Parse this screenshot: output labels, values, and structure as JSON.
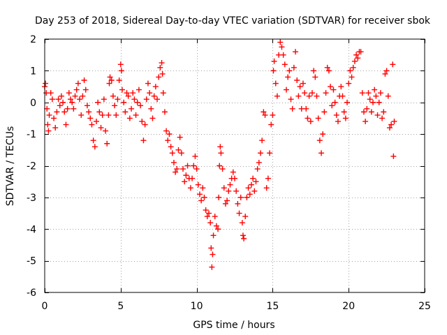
{
  "chart_data": {
    "type": "scatter",
    "title": "Day 253 of 2018, Sidereal Day-to-day VTEC variation (SDTVAR) for receiver sbok",
    "xlabel": "GPS time / hours",
    "ylabel": "SDTVAR / TECUs",
    "xlim": [
      0,
      25
    ],
    "ylim": [
      -6,
      2
    ],
    "xticks": [
      0,
      5,
      10,
      15,
      20,
      25
    ],
    "xtick_labels": [
      "0",
      "5",
      "10",
      "15",
      "20",
      "25"
    ],
    "yticks": [
      -6,
      -5,
      -4,
      -3,
      -2,
      -1,
      0,
      1,
      2
    ],
    "ytick_labels": [
      "-6",
      "-5",
      "-4",
      "-3",
      "-2",
      "-1",
      "0",
      "1",
      "2"
    ],
    "grid": true,
    "marker": "+",
    "color": "#ff0000",
    "series": [
      {
        "name": "SDTVAR",
        "points": [
          [
            0.0,
            0.5
          ],
          [
            0.05,
            0.6
          ],
          [
            0.1,
            0.3
          ],
          [
            0.15,
            -0.2
          ],
          [
            0.2,
            -0.7
          ],
          [
            0.25,
            -0.9
          ],
          [
            0.3,
            -0.4
          ],
          [
            0.4,
            0.3
          ],
          [
            0.5,
            0.1
          ],
          [
            0.6,
            -0.5
          ],
          [
            0.7,
            -0.8
          ],
          [
            0.8,
            -0.3
          ],
          [
            0.9,
            0.1
          ],
          [
            1.0,
            -0.1
          ],
          [
            1.1,
            0.2
          ],
          [
            1.2,
            0.0
          ],
          [
            1.3,
            -0.3
          ],
          [
            1.4,
            -0.7
          ],
          [
            1.5,
            -0.2
          ],
          [
            1.6,
            0.3
          ],
          [
            1.7,
            0.1
          ],
          [
            1.8,
            0.0
          ],
          [
            1.9,
            -0.2
          ],
          [
            2.0,
            0.2
          ],
          [
            2.1,
            0.4
          ],
          [
            2.2,
            0.6
          ],
          [
            2.3,
            0.1
          ],
          [
            2.4,
            -0.4
          ],
          [
            2.5,
            0.2
          ],
          [
            2.6,
            0.7
          ],
          [
            2.7,
            0.4
          ],
          [
            2.8,
            -0.1
          ],
          [
            2.9,
            -0.3
          ],
          [
            3.0,
            -0.5
          ],
          [
            3.1,
            -0.7
          ],
          [
            3.2,
            -1.2
          ],
          [
            3.3,
            -1.4
          ],
          [
            3.4,
            -0.6
          ],
          [
            3.5,
            0.0
          ],
          [
            3.6,
            -0.3
          ],
          [
            3.7,
            -0.8
          ],
          [
            3.8,
            -0.4
          ],
          [
            3.9,
            0.1
          ],
          [
            4.0,
            -0.9
          ],
          [
            4.1,
            -1.3
          ],
          [
            4.2,
            -0.4
          ],
          [
            4.25,
            0.6
          ],
          [
            4.3,
            0.8
          ],
          [
            4.4,
            0.7
          ],
          [
            4.5,
            0.2
          ],
          [
            4.6,
            -0.1
          ],
          [
            4.7,
            -0.4
          ],
          [
            4.8,
            0.1
          ],
          [
            4.9,
            0.7
          ],
          [
            5.0,
            1.2
          ],
          [
            5.05,
            1.0
          ],
          [
            5.1,
            0.4
          ],
          [
            5.2,
            0.0
          ],
          [
            5.3,
            -0.3
          ],
          [
            5.4,
            0.3
          ],
          [
            5.5,
            0.2
          ],
          [
            5.6,
            -0.5
          ],
          [
            5.7,
            -0.2
          ],
          [
            5.8,
            0.3
          ],
          [
            5.9,
            0.1
          ],
          [
            6.0,
            -0.4
          ],
          [
            6.1,
            0.0
          ],
          [
            6.2,
            0.4
          ],
          [
            6.3,
            -0.1
          ],
          [
            6.4,
            -0.6
          ],
          [
            6.5,
            -1.2
          ],
          [
            6.6,
            -0.7
          ],
          [
            6.7,
            0.1
          ],
          [
            6.8,
            0.6
          ],
          [
            6.9,
            0.3
          ],
          [
            7.0,
            -0.2
          ],
          [
            7.1,
            -0.5
          ],
          [
            7.2,
            0.2
          ],
          [
            7.3,
            0.5
          ],
          [
            7.4,
            0.1
          ],
          [
            7.5,
            0.8
          ],
          [
            7.6,
            1.1
          ],
          [
            7.7,
            1.25
          ],
          [
            7.75,
            0.9
          ],
          [
            7.8,
            0.3
          ],
          [
            7.9,
            -0.3
          ],
          [
            8.0,
            -0.9
          ],
          [
            8.1,
            -1.2
          ],
          [
            8.2,
            -1.0
          ],
          [
            8.3,
            -1.4
          ],
          [
            8.4,
            -1.6
          ],
          [
            8.5,
            -1.9
          ],
          [
            8.6,
            -2.2
          ],
          [
            8.7,
            -2.1
          ],
          [
            8.8,
            -1.5
          ],
          [
            8.9,
            -1.1
          ],
          [
            9.0,
            -1.6
          ],
          [
            9.1,
            -2.1
          ],
          [
            9.2,
            -2.5
          ],
          [
            9.3,
            -2.3
          ],
          [
            9.4,
            -2.0
          ],
          [
            9.5,
            -2.4
          ],
          [
            9.6,
            -2.7
          ],
          [
            9.7,
            -2.4
          ],
          [
            9.8,
            -2.0
          ],
          [
            9.9,
            -1.7
          ],
          [
            10.0,
            -2.1
          ],
          [
            10.1,
            -2.6
          ],
          [
            10.2,
            -2.9
          ],
          [
            10.3,
            -3.1
          ],
          [
            10.4,
            -2.7
          ],
          [
            10.5,
            -3.0
          ],
          [
            10.6,
            -3.4
          ],
          [
            10.7,
            -3.6
          ],
          [
            10.8,
            -3.5
          ],
          [
            10.9,
            -3.8
          ],
          [
            10.95,
            -4.6
          ],
          [
            11.0,
            -5.2
          ],
          [
            11.05,
            -4.8
          ],
          [
            11.1,
            -4.2
          ],
          [
            11.2,
            -3.6
          ],
          [
            11.3,
            -3.9
          ],
          [
            11.4,
            -4.0
          ],
          [
            11.45,
            -3.0
          ],
          [
            11.5,
            -2.0
          ],
          [
            11.55,
            -1.4
          ],
          [
            11.6,
            -1.6
          ],
          [
            11.7,
            -2.1
          ],
          [
            11.8,
            -2.7
          ],
          [
            11.9,
            -3.2
          ],
          [
            12.0,
            -3.1
          ],
          [
            12.1,
            -2.8
          ],
          [
            12.2,
            -2.6
          ],
          [
            12.3,
            -2.4
          ],
          [
            12.4,
            -2.2
          ],
          [
            12.5,
            -2.4
          ],
          [
            12.6,
            -2.8
          ],
          [
            12.7,
            -3.2
          ],
          [
            12.8,
            -3.5
          ],
          [
            12.9,
            -3.0
          ],
          [
            13.0,
            -3.8
          ],
          [
            13.05,
            -4.2
          ],
          [
            13.1,
            -4.3
          ],
          [
            13.2,
            -3.6
          ],
          [
            13.3,
            -3.0
          ],
          [
            13.4,
            -2.7
          ],
          [
            13.5,
            -2.9
          ],
          [
            13.6,
            -2.6
          ],
          [
            13.7,
            -2.4
          ],
          [
            13.8,
            -2.8
          ],
          [
            13.9,
            -2.5
          ],
          [
            14.0,
            -2.1
          ],
          [
            14.1,
            -1.9
          ],
          [
            14.2,
            -1.6
          ],
          [
            14.3,
            -1.2
          ],
          [
            14.4,
            -0.3
          ],
          [
            14.5,
            -0.4
          ],
          [
            14.6,
            -2.7
          ],
          [
            14.7,
            -2.4
          ],
          [
            14.8,
            -1.6
          ],
          [
            14.9,
            -0.7
          ],
          [
            15.0,
            -0.4
          ],
          [
            15.05,
            1.0
          ],
          [
            15.1,
            1.3
          ],
          [
            15.2,
            0.6
          ],
          [
            15.3,
            0.2
          ],
          [
            15.4,
            1.5
          ],
          [
            15.5,
            1.9
          ],
          [
            15.6,
            1.75
          ],
          [
            15.7,
            1.5
          ],
          [
            15.8,
            1.2
          ],
          [
            15.9,
            0.4
          ],
          [
            16.0,
            0.8
          ],
          [
            16.1,
            1.0
          ],
          [
            16.2,
            0.1
          ],
          [
            16.3,
            -0.2
          ],
          [
            16.4,
            1.1
          ],
          [
            16.5,
            1.6
          ],
          [
            16.6,
            0.7
          ],
          [
            16.7,
            0.2
          ],
          [
            16.8,
            0.5
          ],
          [
            16.9,
            -0.2
          ],
          [
            17.0,
            0.6
          ],
          [
            17.1,
            0.3
          ],
          [
            17.2,
            -0.2
          ],
          [
            17.3,
            -0.5
          ],
          [
            17.4,
            0.2
          ],
          [
            17.5,
            -0.6
          ],
          [
            17.6,
            0.3
          ],
          [
            17.7,
            1.0
          ],
          [
            17.8,
            0.8
          ],
          [
            17.9,
            0.2
          ],
          [
            18.0,
            -0.5
          ],
          [
            18.1,
            -1.2
          ],
          [
            18.2,
            -1.6
          ],
          [
            18.3,
            -1.0
          ],
          [
            18.4,
            -0.3
          ],
          [
            18.5,
            0.3
          ],
          [
            18.6,
            1.1
          ],
          [
            18.7,
            1.0
          ],
          [
            18.8,
            0.5
          ],
          [
            18.9,
            -0.1
          ],
          [
            19.0,
            0.4
          ],
          [
            19.1,
            0.0
          ],
          [
            19.2,
            -0.4
          ],
          [
            19.3,
            -0.6
          ],
          [
            19.4,
            0.2
          ],
          [
            19.5,
            0.5
          ],
          [
            19.6,
            0.2
          ],
          [
            19.7,
            -0.3
          ],
          [
            19.8,
            -0.5
          ],
          [
            19.9,
            0.0
          ],
          [
            20.0,
            0.6
          ],
          [
            20.1,
            1.0
          ],
          [
            20.2,
            0.8
          ],
          [
            20.3,
            1.1
          ],
          [
            20.4,
            1.3
          ],
          [
            20.5,
            1.5
          ],
          [
            20.6,
            1.4
          ],
          [
            20.7,
            1.6
          ],
          [
            20.8,
            1.6
          ],
          [
            20.9,
            0.3
          ],
          [
            21.0,
            -0.3
          ],
          [
            21.1,
            -0.6
          ],
          [
            21.2,
            -0.2
          ],
          [
            21.3,
            0.3
          ],
          [
            21.4,
            0.1
          ],
          [
            21.5,
            -0.3
          ],
          [
            21.6,
            0.0
          ],
          [
            21.7,
            0.4
          ],
          [
            21.8,
            0.2
          ],
          [
            21.9,
            -0.4
          ],
          [
            22.0,
            0.0
          ],
          [
            22.1,
            0.3
          ],
          [
            22.2,
            -0.5
          ],
          [
            22.3,
            -0.3
          ],
          [
            22.4,
            0.9
          ],
          [
            22.5,
            1.0
          ],
          [
            22.6,
            0.2
          ],
          [
            22.7,
            -0.8
          ],
          [
            22.8,
            -0.7
          ],
          [
            22.9,
            1.2
          ],
          [
            22.95,
            -1.7
          ],
          [
            23.0,
            -0.6
          ]
        ]
      }
    ]
  }
}
